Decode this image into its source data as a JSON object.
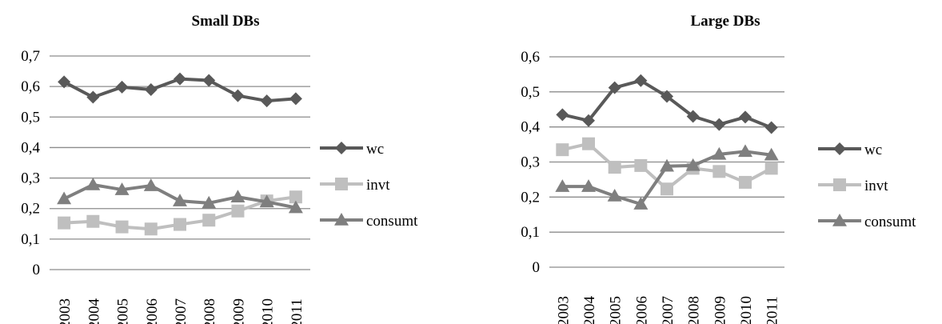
{
  "chart_data": [
    {
      "type": "line",
      "title": "Small DBs",
      "xlabel": "",
      "ylabel": "",
      "categories": [
        "2003",
        "2004",
        "2005",
        "2006",
        "2007",
        "2008",
        "2009",
        "2010",
        "2011"
      ],
      "y_ticks": [
        "0",
        "0,1",
        "0,2",
        "0,3",
        "0,4",
        "0,5",
        "0,6",
        "0,7"
      ],
      "ylim": [
        0,
        0.7
      ],
      "grid": true,
      "legend_position": "right",
      "series": [
        {
          "name": "wc",
          "marker": "diamond",
          "color": "#595959",
          "values": [
            0.615,
            0.565,
            0.598,
            0.59,
            0.625,
            0.62,
            0.57,
            0.553,
            0.56
          ]
        },
        {
          "name": "invt",
          "marker": "square",
          "color": "#bfbfbf",
          "values": [
            0.153,
            0.158,
            0.14,
            0.133,
            0.148,
            0.162,
            0.192,
            0.225,
            0.238
          ]
        },
        {
          "name": "consumt",
          "marker": "triangle",
          "color": "#7f7f7f",
          "values": [
            0.232,
            0.278,
            0.262,
            0.275,
            0.225,
            0.218,
            0.238,
            0.222,
            0.203
          ]
        }
      ]
    },
    {
      "type": "line",
      "title": "Large DBs",
      "xlabel": "",
      "ylabel": "",
      "categories": [
        "2003",
        "2004",
        "2005",
        "2006",
        "2007",
        "2008",
        "2009",
        "2010",
        "2011"
      ],
      "y_ticks": [
        "0",
        "0,1",
        "0,2",
        "0,3",
        "0,4",
        "0,5",
        "0,6"
      ],
      "ylim": [
        0,
        0.6
      ],
      "grid": true,
      "legend_position": "right",
      "series": [
        {
          "name": "wc",
          "marker": "diamond",
          "color": "#595959",
          "values": [
            0.435,
            0.418,
            0.512,
            0.532,
            0.487,
            0.43,
            0.407,
            0.428,
            0.398
          ]
        },
        {
          "name": "invt",
          "marker": "square",
          "color": "#bfbfbf",
          "values": [
            0.335,
            0.352,
            0.285,
            0.29,
            0.223,
            0.282,
            0.273,
            0.242,
            0.282
          ]
        },
        {
          "name": "consumt",
          "marker": "triangle",
          "color": "#7f7f7f",
          "values": [
            0.23,
            0.23,
            0.203,
            0.18,
            0.288,
            0.29,
            0.322,
            0.33,
            0.32
          ]
        }
      ]
    }
  ]
}
